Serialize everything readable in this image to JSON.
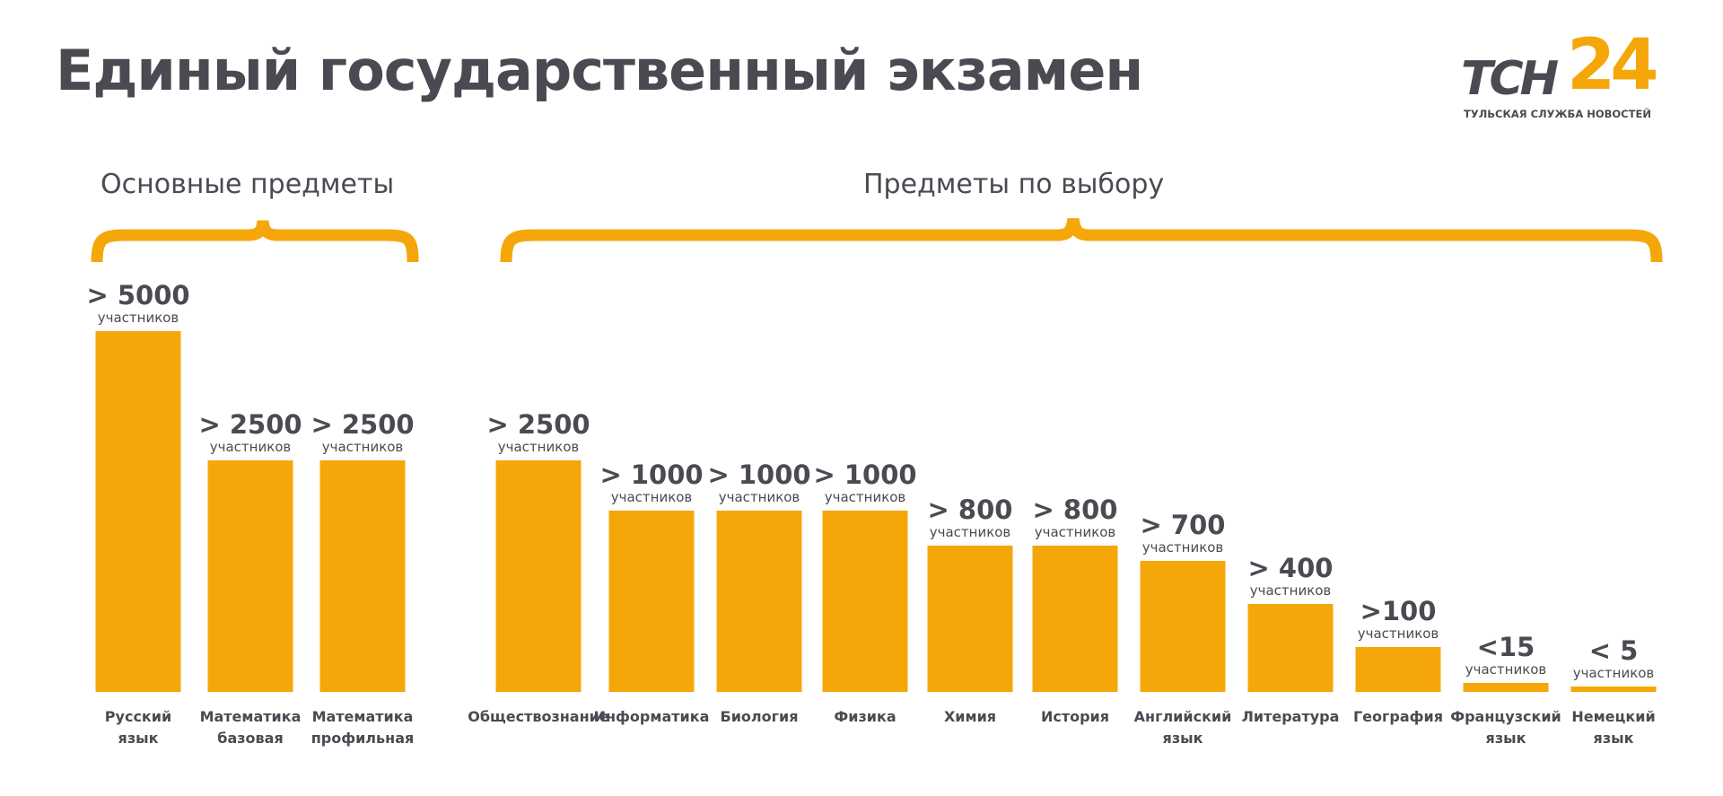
{
  "header": {
    "title": "Единый государственный экзамен"
  },
  "logo": {
    "word": "ТСН",
    "number": "24",
    "tagline": "ТУЛЬСКАЯ СЛУЖБА НОВОСТЕЙ"
  },
  "colors": {
    "accent": "#f5a70a",
    "text": "#4a4a52",
    "background": "#ffffff"
  },
  "chart_data": {
    "type": "bar",
    "title": "Единый государственный экзамен",
    "unit_label": "участников",
    "groups": [
      {
        "name": "Основные предметы",
        "categories": [
          "Русский язык",
          "Математика базовая",
          "Математика профильная"
        ]
      },
      {
        "name": "Предметы по выбору",
        "categories": [
          "Обществознание",
          "Информатика",
          "Биология",
          "Физика",
          "Химия",
          "История",
          "Английский язык",
          "Литература",
          "География",
          "Французский язык",
          "Немецкий язык"
        ]
      }
    ],
    "categories": [
      [
        "Русский",
        "язык"
      ],
      [
        "Математика",
        "базовая"
      ],
      [
        "Математика",
        "профильная"
      ],
      [
        "Обществознание"
      ],
      [
        "Информатика"
      ],
      [
        "Биология"
      ],
      [
        "Физика"
      ],
      [
        "Химия"
      ],
      [
        "История"
      ],
      [
        "Английский",
        "язык"
      ],
      [
        "Литература"
      ],
      [
        "География"
      ],
      [
        "Французский",
        "язык"
      ],
      [
        "Немецкий",
        "язык"
      ]
    ],
    "value_labels": [
      "> 5000",
      "> 2500",
      "> 2500",
      "> 2500",
      "> 1000",
      "> 1000",
      "> 1000",
      "> 800",
      "> 800",
      "> 700",
      "> 400",
      ">100",
      "<15",
      "< 5"
    ],
    "values": [
      5000,
      2500,
      2500,
      2500,
      1000,
      1000,
      1000,
      800,
      800,
      700,
      400,
      100,
      15,
      5
    ],
    "xlabel": "",
    "ylabel": ""
  }
}
